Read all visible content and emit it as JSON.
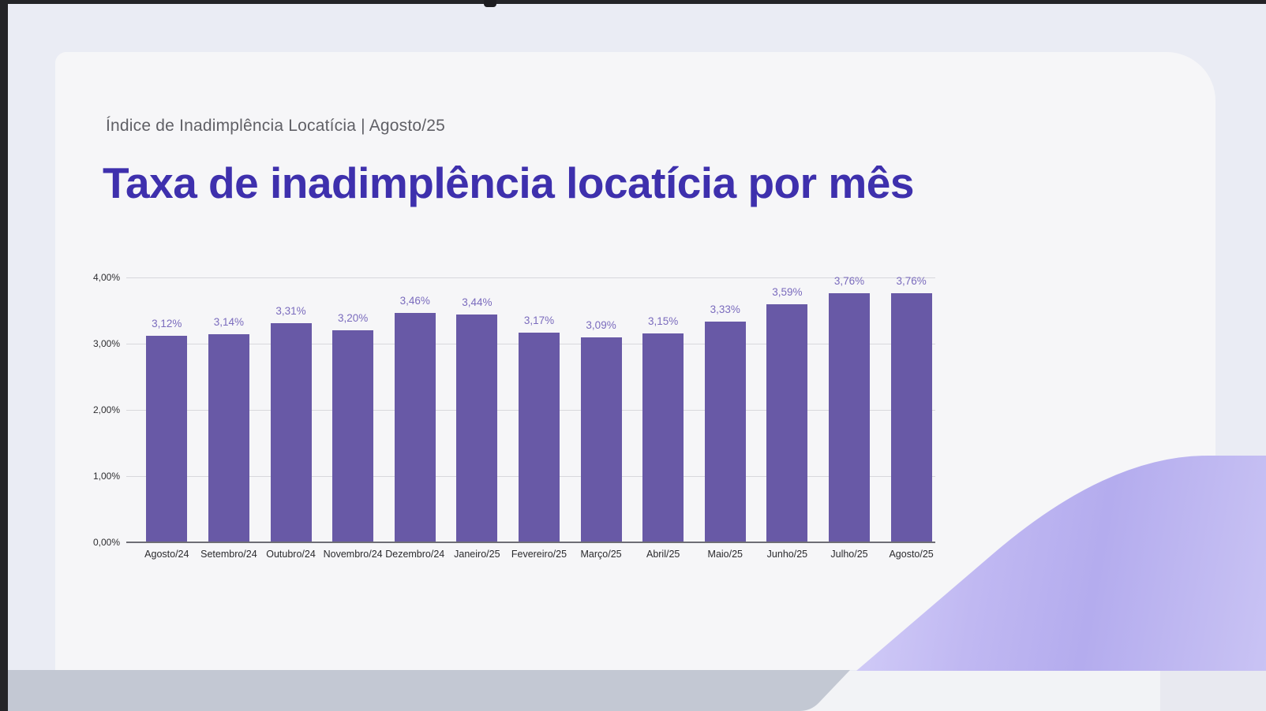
{
  "header": {
    "eyebrow": "Índice de Inadimplência Locatícia | Agosto/25",
    "title": "Taxa de inadimplência locatícia por mês"
  },
  "colors": {
    "title": "#3e30ad",
    "bar": "#6859a6",
    "value_label": "#7a6bbd",
    "background": "#eaecf4",
    "card": "#f6f6f8",
    "swoosh_gradient": [
      "#dbd7fa",
      "#b4acee"
    ],
    "laptop_base": "#c3c8d3"
  },
  "chart_data": {
    "type": "bar",
    "title": "Taxa de inadimplência locatícia por mês",
    "categories": [
      "Agosto/24",
      "Setembro/24",
      "Outubro/24",
      "Novembro/24",
      "Dezembro/24",
      "Janeiro/25",
      "Fevereiro/25",
      "Março/25",
      "Abril/25",
      "Maio/25",
      "Junho/25",
      "Julho/25",
      "Agosto/25"
    ],
    "values": [
      3.12,
      3.14,
      3.31,
      3.2,
      3.46,
      3.44,
      3.17,
      3.09,
      3.15,
      3.33,
      3.59,
      3.76,
      3.76
    ],
    "value_labels": [
      "3,12%",
      "3,14%",
      "3,31%",
      "3,20%",
      "3,46%",
      "3,44%",
      "3,17%",
      "3,09%",
      "3,15%",
      "3,33%",
      "3,59%",
      "3,76%",
      "3,76%"
    ],
    "y_ticks": [
      "0,00%",
      "1,00%",
      "2,00%",
      "3,00%",
      "4,00%"
    ],
    "y_tick_values": [
      0,
      1,
      2,
      3,
      4
    ],
    "xlabel": "",
    "ylabel": "",
    "ylim": [
      0,
      4
    ],
    "grid": true,
    "legend": "none"
  }
}
